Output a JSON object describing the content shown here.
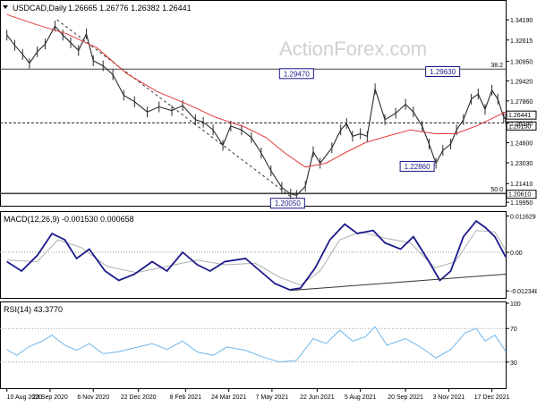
{
  "header": {
    "symbol_label": "USDCAD,Daily",
    "ohlc_label": "1.26665 1.26776 1.26382 1.26441"
  },
  "watermark": "ActionForex.com",
  "chart_data": [
    {
      "type": "candlestick",
      "name": "price",
      "ylim": [
        1.1975,
        1.356
      ],
      "price_ticks": [
        "1.34190",
        "1.32615",
        "1.30950",
        "1.29420",
        "1.27860",
        "1.26140",
        "1.24600",
        "1.23030",
        "1.21410",
        "1.19950"
      ],
      "fib_lines": [
        {
          "label": "38.2",
          "value": 1.3035
        },
        {
          "label": "50.0",
          "value": 1.2066
        }
      ],
      "highlight_lines": [
        {
          "value": 1.2615,
          "label": "1.26150"
        },
        {
          "value": 1.26441,
          "label": "1.26441"
        }
      ],
      "support_levels": [
        {
          "value": 1.2061,
          "label": "1.20610"
        }
      ],
      "annotations": [
        {
          "label": "1.29470",
          "date": "2021-06-01",
          "value": 1.2947
        },
        {
          "label": "1.29630",
          "date": "2021-11-16",
          "value": 1.2963
        },
        {
          "label": "1.22860",
          "date": "2021-10-21",
          "value": 1.2286
        },
        {
          "label": "1.20050",
          "date": "2021-06-01",
          "value": 1.2005
        }
      ],
      "trendline": [
        {
          "date": "2020-09-30",
          "value": 1.342
        },
        {
          "date": "2021-06-01",
          "value": 1.2005
        }
      ],
      "close_points": [
        [
          "2020-08-10",
          1.33
        ],
        [
          "2020-08-18",
          1.322
        ],
        [
          "2020-08-26",
          1.315
        ],
        [
          "2020-09-02",
          1.308
        ],
        [
          "2020-09-10",
          1.317
        ],
        [
          "2020-09-18",
          1.323
        ],
        [
          "2020-09-28",
          1.337
        ],
        [
          "2020-10-06",
          1.33
        ],
        [
          "2020-10-14",
          1.324
        ],
        [
          "2020-10-22",
          1.318
        ],
        [
          "2020-10-30",
          1.331
        ],
        [
          "2020-11-06",
          1.31
        ],
        [
          "2020-11-16",
          1.306
        ],
        [
          "2020-11-26",
          1.299
        ],
        [
          "2020-12-07",
          1.283
        ],
        [
          "2020-12-18",
          1.278
        ],
        [
          "2020-12-31",
          1.27
        ],
        [
          "2021-01-12",
          1.274
        ],
        [
          "2021-01-25",
          1.271
        ],
        [
          "2021-02-05",
          1.275
        ],
        [
          "2021-02-18",
          1.264
        ],
        [
          "2021-02-26",
          1.262
        ],
        [
          "2021-03-08",
          1.256
        ],
        [
          "2021-03-18",
          1.244
        ],
        [
          "2021-03-26",
          1.259
        ],
        [
          "2021-04-06",
          1.256
        ],
        [
          "2021-04-16",
          1.25
        ],
        [
          "2021-04-26",
          1.238
        ],
        [
          "2021-05-06",
          1.224
        ],
        [
          "2021-05-17",
          1.211
        ],
        [
          "2021-05-26",
          1.206
        ],
        [
          "2021-06-01",
          1.205
        ],
        [
          "2021-06-10",
          1.212
        ],
        [
          "2021-06-18",
          1.239
        ],
        [
          "2021-06-25",
          1.23
        ],
        [
          "2021-07-07",
          1.242
        ],
        [
          "2021-07-16",
          1.256
        ],
        [
          "2021-07-22",
          1.261
        ],
        [
          "2021-07-28",
          1.251
        ],
        [
          "2021-08-05",
          1.253
        ],
        [
          "2021-08-12",
          1.251
        ],
        [
          "2021-08-20",
          1.288
        ],
        [
          "2021-08-30",
          1.264
        ],
        [
          "2021-09-10",
          1.269
        ],
        [
          "2021-09-20",
          1.276
        ],
        [
          "2021-09-28",
          1.27
        ],
        [
          "2021-10-07",
          1.259
        ],
        [
          "2021-10-14",
          1.245
        ],
        [
          "2021-10-21",
          1.23
        ],
        [
          "2021-10-28",
          1.24
        ],
        [
          "2021-11-05",
          1.245
        ],
        [
          "2021-11-11",
          1.256
        ],
        [
          "2021-11-18",
          1.264
        ],
        [
          "2021-11-26",
          1.28
        ],
        [
          "2021-12-03",
          1.284
        ],
        [
          "2021-12-10",
          1.272
        ],
        [
          "2021-12-17",
          1.287
        ],
        [
          "2021-12-23",
          1.28
        ],
        [
          "2021-12-29",
          1.266
        ],
        [
          "2021-12-31",
          1.2644
        ]
      ],
      "ma_points": [
        [
          "2020-08-10",
          1.346
        ],
        [
          "2020-09-10",
          1.338
        ],
        [
          "2020-10-10",
          1.331
        ],
        [
          "2020-11-10",
          1.32
        ],
        [
          "2020-12-10",
          1.3
        ],
        [
          "2021-01-10",
          1.286
        ],
        [
          "2021-02-10",
          1.276
        ],
        [
          "2021-03-10",
          1.266
        ],
        [
          "2021-04-10",
          1.258
        ],
        [
          "2021-05-01",
          1.25
        ],
        [
          "2021-05-20",
          1.238
        ],
        [
          "2021-06-10",
          1.227
        ],
        [
          "2021-07-01",
          1.23
        ],
        [
          "2021-07-20",
          1.238
        ],
        [
          "2021-08-10",
          1.246
        ],
        [
          "2021-09-01",
          1.251
        ],
        [
          "2021-09-25",
          1.256
        ],
        [
          "2021-10-20",
          1.253
        ],
        [
          "2021-11-10",
          1.253
        ],
        [
          "2021-12-01",
          1.259
        ],
        [
          "2021-12-20",
          1.266
        ],
        [
          "2021-12-31",
          1.27
        ]
      ]
    },
    {
      "type": "line",
      "name": "macd",
      "label": "MACD(12,26,9) -0.001530 0.000658",
      "ylim": [
        -0.0143,
        0.0126
      ],
      "ticks": [
        {
          "label": "0.011629",
          "value": 0.011629
        },
        {
          "label": "0.00",
          "value": 0.0
        },
        {
          "label": "-0.012348",
          "value": -0.012348
        }
      ],
      "series": [
        {
          "points": [
            [
              "2020-08-10",
              -0.003
            ],
            [
              "2020-08-25",
              -0.006
            ],
            [
              "2020-09-10",
              -0.001
            ],
            [
              "2020-09-25",
              0.006
            ],
            [
              "2020-10-08",
              0.004
            ],
            [
              "2020-10-20",
              -0.002
            ],
            [
              "2020-11-02",
              0.001
            ],
            [
              "2020-11-18",
              -0.006
            ],
            [
              "2020-12-02",
              -0.009
            ],
            [
              "2020-12-18",
              -0.007
            ],
            [
              "2021-01-05",
              -0.003
            ],
            [
              "2021-01-20",
              -0.006
            ],
            [
              "2021-02-05",
              0.0
            ],
            [
              "2021-02-20",
              -0.004
            ],
            [
              "2021-03-05",
              -0.006
            ],
            [
              "2021-03-20",
              -0.003
            ],
            [
              "2021-04-10",
              -0.002
            ],
            [
              "2021-04-25",
              -0.006
            ],
            [
              "2021-05-10",
              -0.01
            ],
            [
              "2021-05-25",
              -0.012
            ],
            [
              "2021-06-05",
              -0.0115
            ],
            [
              "2021-06-20",
              -0.005
            ],
            [
              "2021-07-05",
              0.004
            ],
            [
              "2021-07-20",
              0.009
            ],
            [
              "2021-08-02",
              0.006
            ],
            [
              "2021-08-18",
              0.007
            ],
            [
              "2021-08-30",
              0.003
            ],
            [
              "2021-09-15",
              0.001
            ],
            [
              "2021-09-28",
              0.005
            ],
            [
              "2021-10-12",
              -0.002
            ],
            [
              "2021-10-25",
              -0.009
            ],
            [
              "2021-11-05",
              -0.006
            ],
            [
              "2021-11-18",
              0.005
            ],
            [
              "2021-12-01",
              0.01
            ],
            [
              "2021-12-10",
              0.008
            ],
            [
              "2021-12-20",
              0.005
            ],
            [
              "2021-12-31",
              -0.0015
            ]
          ]
        },
        {
          "points": [
            [
              "2020-08-10",
              -0.0025
            ],
            [
              "2020-09-10",
              -0.003
            ],
            [
              "2020-10-01",
              0.004
            ],
            [
              "2020-10-25",
              0.0015
            ],
            [
              "2020-11-20",
              -0.0045
            ],
            [
              "2020-12-20",
              -0.0065
            ],
            [
              "2021-01-20",
              -0.0045
            ],
            [
              "2021-02-20",
              -0.0025
            ],
            [
              "2021-03-20",
              -0.004
            ],
            [
              "2021-04-20",
              -0.0035
            ],
            [
              "2021-05-15",
              -0.008
            ],
            [
              "2021-06-05",
              -0.0105
            ],
            [
              "2021-06-25",
              -0.006
            ],
            [
              "2021-07-15",
              0.004
            ],
            [
              "2021-08-05",
              0.0065
            ],
            [
              "2021-08-30",
              0.0045
            ],
            [
              "2021-09-25",
              0.003
            ],
            [
              "2021-10-20",
              -0.005
            ],
            [
              "2021-11-10",
              -0.003
            ],
            [
              "2021-12-01",
              0.007
            ],
            [
              "2021-12-20",
              0.0065
            ],
            [
              "2021-12-31",
              0.0007
            ]
          ]
        }
      ],
      "trendline": [
        {
          "date": "2021-05-26",
          "value": -0.0122
        },
        {
          "date": "2021-12-31",
          "value": -0.007
        }
      ]
    },
    {
      "type": "line",
      "name": "rsi",
      "label": "RSI(14) 43.3770",
      "ylim": [
        0,
        100
      ],
      "ticks": [
        {
          "label": "100",
          "value": 100
        },
        {
          "label": "70",
          "value": 70
        },
        {
          "label": "30",
          "value": 30
        },
        {
          "label": "0",
          "value": 0
        }
      ],
      "series": [
        {
          "points": [
            [
              "2020-08-10",
              45
            ],
            [
              "2020-08-20",
              38
            ],
            [
              "2020-09-01",
              48
            ],
            [
              "2020-09-15",
              55
            ],
            [
              "2020-09-25",
              62
            ],
            [
              "2020-10-08",
              50
            ],
            [
              "2020-10-20",
              44
            ],
            [
              "2020-11-02",
              52
            ],
            [
              "2020-11-16",
              40
            ],
            [
              "2020-11-30",
              42
            ],
            [
              "2020-12-15",
              46
            ],
            [
              "2021-01-05",
              52
            ],
            [
              "2021-01-20",
              45
            ],
            [
              "2021-02-05",
              55
            ],
            [
              "2021-02-20",
              42
            ],
            [
              "2021-03-08",
              38
            ],
            [
              "2021-03-22",
              48
            ],
            [
              "2021-04-10",
              44
            ],
            [
              "2021-04-28",
              36
            ],
            [
              "2021-05-15",
              30
            ],
            [
              "2021-06-01",
              32
            ],
            [
              "2021-06-18",
              58
            ],
            [
              "2021-07-01",
              52
            ],
            [
              "2021-07-15",
              68
            ],
            [
              "2021-07-28",
              55
            ],
            [
              "2021-08-10",
              60
            ],
            [
              "2021-08-20",
              72
            ],
            [
              "2021-09-01",
              50
            ],
            [
              "2021-09-20",
              58
            ],
            [
              "2021-10-05",
              48
            ],
            [
              "2021-10-21",
              35
            ],
            [
              "2021-11-05",
              45
            ],
            [
              "2021-11-20",
              65
            ],
            [
              "2021-12-01",
              70
            ],
            [
              "2021-12-10",
              55
            ],
            [
              "2021-12-20",
              62
            ],
            [
              "2021-12-31",
              43
            ]
          ]
        }
      ]
    }
  ],
  "x_axis": {
    "tick_labels": [
      "10 Aug 2020",
      "23 Sep 2020",
      "6 Nov 2020",
      "22 Dec 2020",
      "8 Feb 2021",
      "24 Mar 2021",
      "7 May 2021",
      "22 Jun 2021",
      "5 Aug 2021",
      "20 Sep 2021",
      "3 Nov 2021",
      "17 Dec 2021"
    ],
    "tick_dates": [
      "2020-08-10",
      "2020-09-23",
      "2020-11-06",
      "2020-12-22",
      "2021-02-08",
      "2021-03-24",
      "2021-05-07",
      "2021-06-22",
      "2021-08-05",
      "2021-09-20",
      "2021-11-03",
      "2021-12-17"
    ],
    "start": "2020-08-03",
    "end": "2021-12-31"
  },
  "colors": {
    "price_line": "#2b2b2b",
    "ma": "#e23a3a",
    "macd": "#1a1a8c",
    "macd_signal": "#b0b0b0",
    "rsi": "#6fb6ea",
    "grid": "#d8d8d8",
    "label_box": "#1a1a8c"
  }
}
